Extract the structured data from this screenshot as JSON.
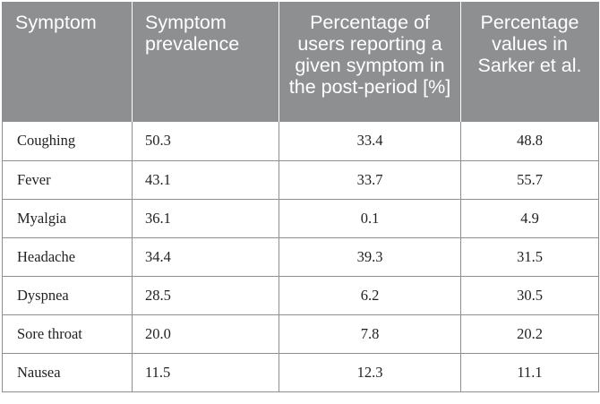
{
  "table": {
    "headers": [
      "Symptom",
      "Symptom prevalence",
      "Percentage of users reporting a given symptom in the post-period [%]",
      "Percentage values in Sarker et al."
    ],
    "rows": [
      [
        "Coughing",
        "50.3",
        "33.4",
        "48.8"
      ],
      [
        "Fever",
        "43.1",
        "33.7",
        "55.7"
      ],
      [
        "Myalgia",
        "36.1",
        "0.1",
        "4.9"
      ],
      [
        "Headache",
        "34.4",
        "39.3",
        "31.5"
      ],
      [
        "Dyspnea",
        "28.5",
        "6.2",
        "30.5"
      ],
      [
        "Sore throat",
        "20.0",
        "7.8",
        "20.2"
      ],
      [
        "Nausea",
        "11.5",
        "12.3",
        "11.1"
      ]
    ]
  }
}
